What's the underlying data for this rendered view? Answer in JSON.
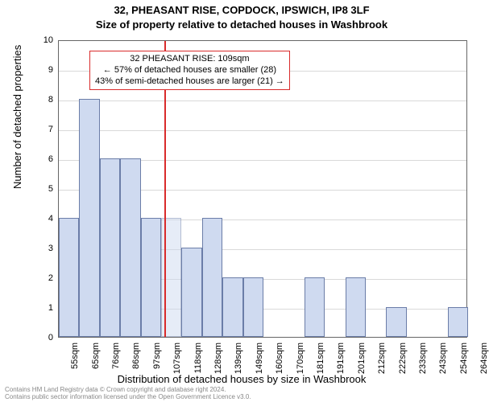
{
  "title": {
    "line1": "32, PHEASANT RISE, COPDOCK, IPSWICH, IP8 3LF",
    "line2": "Size of property relative to detached houses in Washbrook"
  },
  "chart": {
    "type": "histogram",
    "x_ticks": [
      "55sqm",
      "65sqm",
      "76sqm",
      "86sqm",
      "97sqm",
      "107sqm",
      "118sqm",
      "128sqm",
      "139sqm",
      "149sqm",
      "160sqm",
      "170sqm",
      "181sqm",
      "191sqm",
      "201sqm",
      "212sqm",
      "222sqm",
      "233sqm",
      "243sqm",
      "254sqm",
      "264sqm"
    ],
    "y_min": 0,
    "y_max": 10,
    "y_ticks": [
      0,
      1,
      2,
      3,
      4,
      5,
      6,
      7,
      8,
      9,
      10
    ],
    "bars": [
      {
        "height": 4,
        "dim": false
      },
      {
        "height": 8,
        "dim": false
      },
      {
        "height": 6,
        "dim": false
      },
      {
        "height": 6,
        "dim": false
      },
      {
        "height": 4,
        "dim": false
      },
      {
        "height": 4,
        "dim": true
      },
      {
        "height": 3,
        "dim": false
      },
      {
        "height": 4,
        "dim": false
      },
      {
        "height": 2,
        "dim": false
      },
      {
        "height": 2,
        "dim": false
      },
      {
        "height": 0,
        "dim": false
      },
      {
        "height": 0,
        "dim": false
      },
      {
        "height": 2,
        "dim": false
      },
      {
        "height": 0,
        "dim": false
      },
      {
        "height": 2,
        "dim": false
      },
      {
        "height": 0,
        "dim": false
      },
      {
        "height": 1,
        "dim": false
      },
      {
        "height": 0,
        "dim": false
      },
      {
        "height": 0,
        "dim": false
      },
      {
        "height": 1,
        "dim": false
      }
    ],
    "reference_line_category_index": 5,
    "bar_fill": "#cfdaf0",
    "bar_stroke": "#6b7da8",
    "grid_color": "#d9d9d9",
    "ref_color": "#d92b2b",
    "background_color": "#ffffff",
    "y_axis_title": "Number of detached properties",
    "x_axis_title": "Distribution of detached houses by size in Washbrook"
  },
  "annotation": {
    "line1": "32 PHEASANT RISE: 109sqm",
    "line2": "← 57% of detached houses are smaller (28)",
    "line3": "43% of semi-detached houses are larger (21) →"
  },
  "footer": {
    "line1": "Contains HM Land Registry data © Crown copyright and database right 2024.",
    "line2": "Contains public sector information licensed under the Open Government Licence v3.0."
  }
}
